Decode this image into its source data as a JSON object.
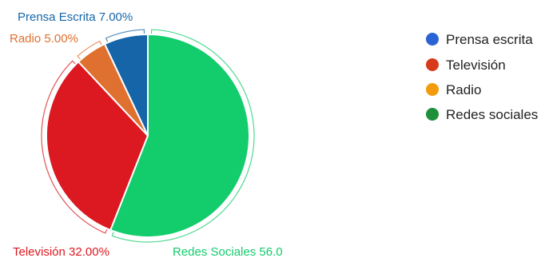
{
  "chart_data": {
    "type": "pie",
    "slices": [
      {
        "name": "Prensa escrita",
        "value": 7.0,
        "label": "Prensa Escrita 7.00%",
        "color": "#1565a8"
      },
      {
        "name": "Radio",
        "value": 5.0,
        "label": "Radio 5.00%",
        "color": "#e0702f"
      },
      {
        "name": "Televisión",
        "value": 32.0,
        "label": "Televisión 32.00%",
        "color": "#dc1820"
      },
      {
        "name": "Redes sociales",
        "value": 56.0,
        "label": "Redes Sociales 56.0",
        "color": "#13cc6c"
      }
    ],
    "start_angle_deg": 0,
    "direction": "counterclockwise",
    "legend": {
      "position": "right",
      "items": [
        {
          "label": "Prensa escrita",
          "color": "#2a63d3"
        },
        {
          "label": "Televisión",
          "color": "#d63a1b"
        },
        {
          "label": "Radio",
          "color": "#f29b0c"
        },
        {
          "label": "Redes sociales",
          "color": "#1e8f3b"
        }
      ]
    }
  }
}
